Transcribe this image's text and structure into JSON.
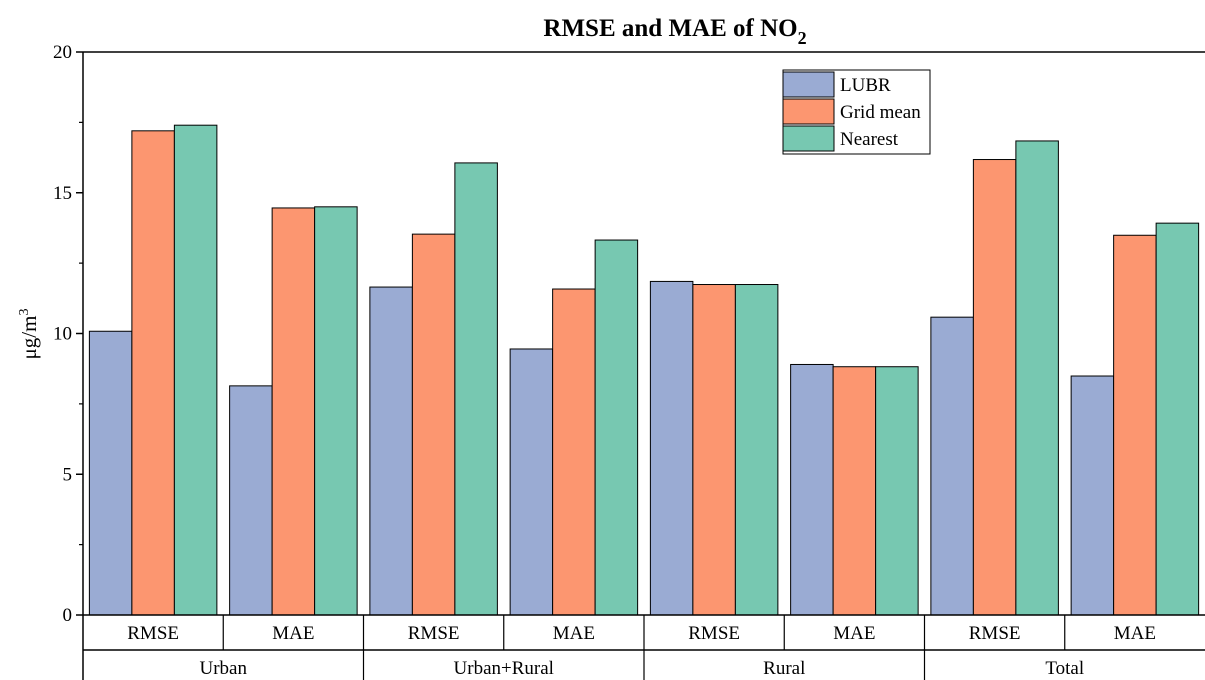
{
  "chart_data": {
    "type": "bar",
    "title": "RMSE and MAE of NO",
    "title_subscript": "2",
    "ylabel": "μg/m",
    "ylabel_superscript": "3",
    "xlabel": "",
    "ylim": [
      0,
      20
    ],
    "yticks": [
      "0",
      "5",
      "10",
      "15",
      "20"
    ],
    "categories": [
      "RMSE",
      "MAE",
      "RMSE",
      "MAE",
      "RMSE",
      "MAE",
      "RMSE",
      "MAE"
    ],
    "groups": [
      "Urban",
      "Urban+Rural",
      "Rural",
      "Total"
    ],
    "series": [
      {
        "name": "LUBR",
        "color": "#9aabd3",
        "values": [
          10.08,
          8.14,
          11.65,
          9.45,
          11.85,
          8.9,
          10.58,
          8.49
        ]
      },
      {
        "name": "Grid mean",
        "color": "#fc9670",
        "values": [
          17.2,
          14.46,
          13.53,
          11.58,
          11.74,
          8.82,
          16.18,
          13.49
        ]
      },
      {
        "name": "Nearest",
        "color": "#77c8b1",
        "values": [
          17.4,
          14.5,
          16.06,
          13.32,
          11.74,
          8.82,
          16.84,
          13.92
        ]
      }
    ],
    "legend_position": "top-right",
    "grid": false
  }
}
